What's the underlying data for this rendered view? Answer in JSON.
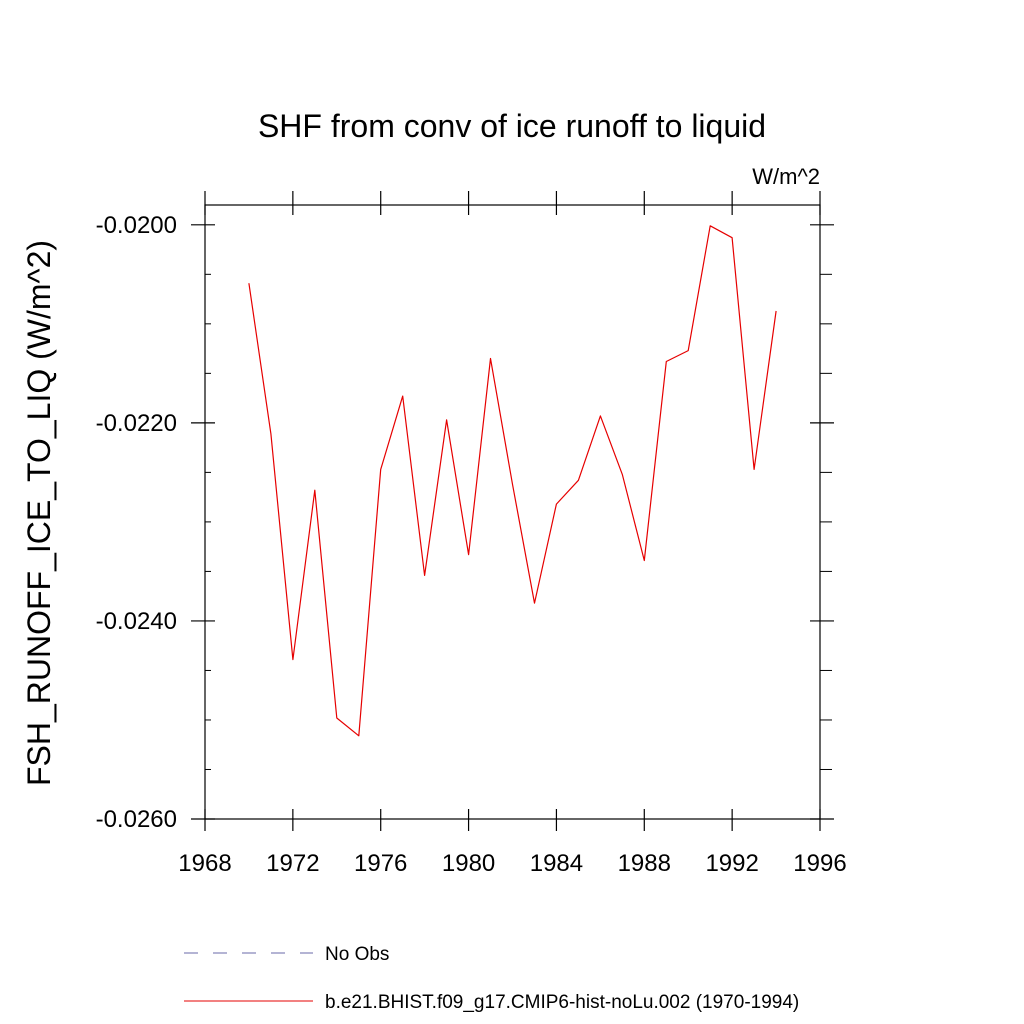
{
  "chart_data": {
    "type": "line",
    "title": "SHF from conv of ice runoff to liquid",
    "units": "W/m^2",
    "ylabel": "FSH_RUNOFF_ICE_TO_LIQ  (W/m^2)",
    "xlabel": "",
    "xlim": [
      1968,
      1996
    ],
    "ylim": [
      -0.026,
      -0.0198
    ],
    "x_ticks": [
      1968,
      1972,
      1976,
      1980,
      1984,
      1988,
      1992,
      1996
    ],
    "x_tick_labels": [
      "1968",
      "1972",
      "1976",
      "1980",
      "1984",
      "1988",
      "1992",
      "1996"
    ],
    "y_ticks": [
      -0.026,
      -0.024,
      -0.022,
      -0.02
    ],
    "y_tick_labels": [
      "-0.0260",
      "-0.0240",
      "-0.0220",
      "-0.0200"
    ],
    "grid": false,
    "series": [
      {
        "name": "b.e21.BHIST.f09_g17.CMIP6-hist-noLu.002 (1970-1994)",
        "color": "#e60000",
        "style": "solid",
        "x": [
          1970,
          1971,
          1972,
          1973,
          1974,
          1975,
          1976,
          1977,
          1978,
          1979,
          1980,
          1981,
          1982,
          1983,
          1984,
          1985,
          1986,
          1987,
          1988,
          1989,
          1990,
          1991,
          1992,
          1993,
          1994
        ],
        "y": [
          -0.02059,
          -0.02211,
          -0.02439,
          -0.02268,
          -0.02498,
          -0.02516,
          -0.02247,
          -0.02173,
          -0.02354,
          -0.02197,
          -0.02333,
          -0.02135,
          -0.02262,
          -0.02382,
          -0.02282,
          -0.02258,
          -0.02193,
          -0.02252,
          -0.02339,
          -0.02138,
          -0.02127,
          -0.02001,
          -0.02013,
          -0.02247,
          -0.02087
        ]
      }
    ],
    "legend": {
      "position": "bottom",
      "entries": [
        {
          "label": "No Obs",
          "color": "#6a6aa8",
          "style": "dashed"
        },
        {
          "label": "b.e21.BHIST.f09_g17.CMIP6-hist-noLu.002 (1970-1994)",
          "color": "#e60000",
          "style": "solid"
        }
      ]
    }
  }
}
